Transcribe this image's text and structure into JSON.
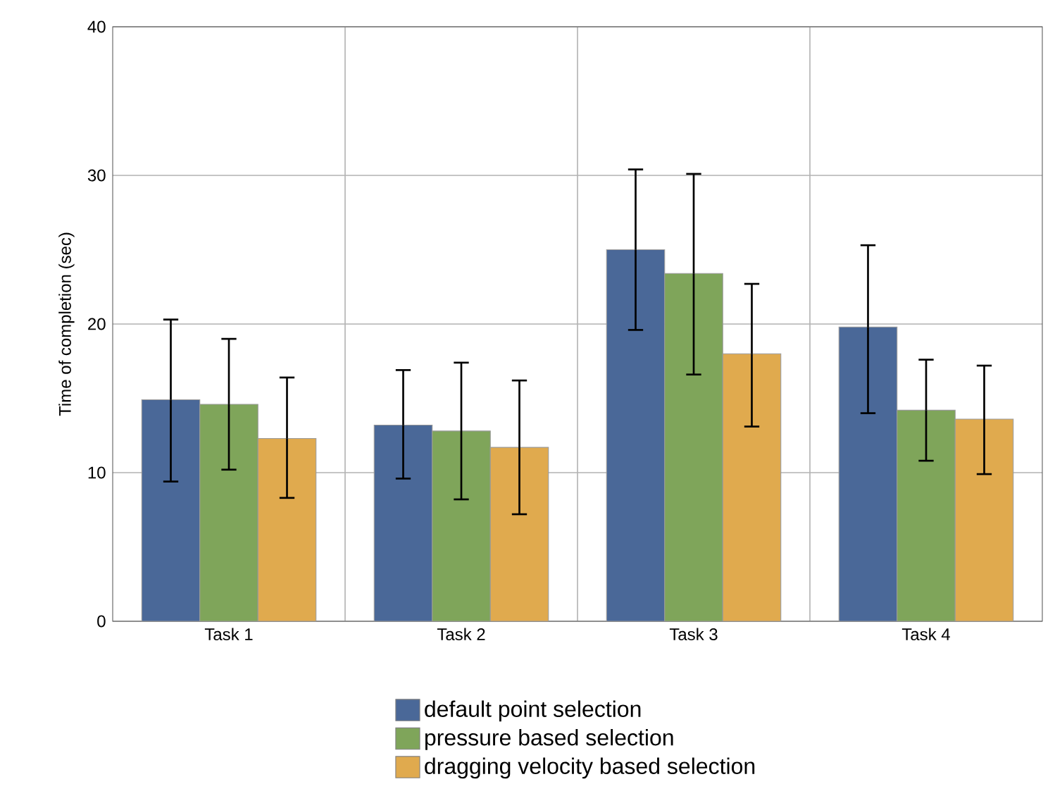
{
  "chart_data": {
    "type": "bar",
    "ylabel": "Time of completion (sec)",
    "categories": [
      "Task 1",
      "Task 2",
      "Task 3",
      "Task 4"
    ],
    "series": [
      {
        "name": "default point selection",
        "color": "#4a6898",
        "values": [
          14.9,
          13.2,
          25.0,
          19.8
        ],
        "errors": [
          [
            9.4,
            20.3
          ],
          [
            9.6,
            16.9
          ],
          [
            19.6,
            30.4
          ],
          [
            14.0,
            25.3
          ]
        ]
      },
      {
        "name": "pressure based selection",
        "color": "#7fa55a",
        "values": [
          14.6,
          12.8,
          23.4,
          14.2
        ],
        "errors": [
          [
            10.2,
            19.0
          ],
          [
            8.2,
            17.4
          ],
          [
            16.6,
            30.1
          ],
          [
            10.8,
            17.6
          ]
        ]
      },
      {
        "name": "dragging velocity based selection",
        "color": "#e0aa4e",
        "values": [
          12.3,
          11.7,
          18.0,
          13.6
        ],
        "errors": [
          [
            8.3,
            16.4
          ],
          [
            7.2,
            16.2
          ],
          [
            13.1,
            22.7
          ],
          [
            9.9,
            17.2
          ]
        ]
      }
    ],
    "ylim": [
      0,
      40
    ],
    "yticks": [
      0,
      10,
      20,
      30,
      40
    ],
    "grid": true,
    "legend": "bottom"
  }
}
